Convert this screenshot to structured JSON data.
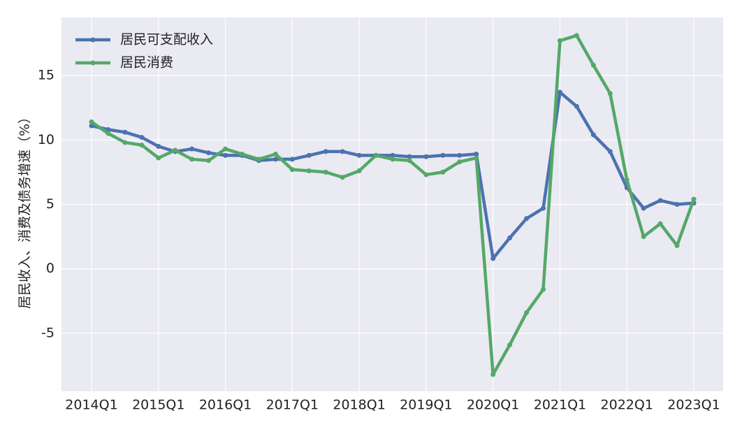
{
  "chart_data": {
    "type": "line",
    "ylabel": "居民收入、消费及债务增速（%）",
    "categories": [
      "2014Q1",
      null,
      null,
      null,
      "2015Q1",
      null,
      null,
      null,
      "2016Q1",
      null,
      null,
      null,
      "2017Q1",
      null,
      null,
      null,
      "2018Q1",
      null,
      null,
      null,
      "2019Q1",
      null,
      null,
      null,
      "2020Q1",
      null,
      null,
      null,
      "2021Q1",
      null,
      null,
      null,
      "2022Q1",
      null,
      null,
      null,
      "2023Q1"
    ],
    "series": [
      {
        "name": "居民可支配收入",
        "color": "#4c72b0",
        "values": [
          11.1,
          10.8,
          10.6,
          10.2,
          9.5,
          9.1,
          9.3,
          9.0,
          8.8,
          8.8,
          8.4,
          8.5,
          8.5,
          8.8,
          9.1,
          9.1,
          8.8,
          8.8,
          8.8,
          8.7,
          8.7,
          8.8,
          8.8,
          8.9,
          0.8,
          2.4,
          3.9,
          4.7,
          13.7,
          12.6,
          10.4,
          9.1,
          6.3,
          4.7,
          5.3,
          5.0,
          5.1
        ]
      },
      {
        "name": "居民消费",
        "color": "#55a868",
        "values": [
          11.4,
          10.5,
          9.8,
          9.6,
          8.6,
          9.2,
          8.5,
          8.4,
          9.3,
          8.9,
          8.5,
          8.9,
          7.7,
          7.6,
          7.5,
          7.1,
          7.6,
          8.8,
          8.5,
          8.4,
          7.3,
          7.5,
          8.3,
          8.6,
          -8.2,
          -5.9,
          -3.4,
          -1.6,
          17.7,
          18.1,
          15.8,
          13.6,
          6.9,
          2.5,
          3.5,
          1.8,
          5.4
        ]
      }
    ],
    "ylim": [
      -9.5,
      19.5
    ],
    "yticks": [
      -5,
      0,
      5,
      10,
      15
    ],
    "grid": true,
    "legend": "upper-left"
  }
}
